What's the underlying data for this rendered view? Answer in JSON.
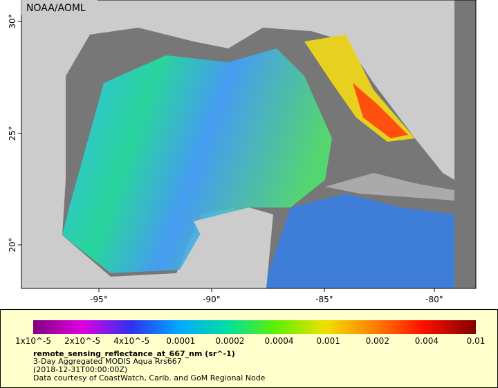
{
  "map": {
    "credit": "NOAA/AOML",
    "x_ticks": [
      "-95°",
      "-90°",
      "-85°",
      "-80°"
    ],
    "y_ticks": [
      "30°",
      "25°",
      "20°"
    ]
  },
  "colorbar": {
    "ticks": [
      "1x10^-5",
      "2x10^-5",
      "4x10^-5",
      "0.0001",
      "0.0002",
      "0.0004",
      "0.001",
      "0.002",
      "0.004",
      "0.01"
    ],
    "title": "remote_sensing_reflectance_at_667_nm (sr^-1)",
    "lines": [
      "3-Day Aggregated MODIS Aqua Rrs667",
      "(2018-12-31T00:00:00Z)",
      "Data courtesy of CoastWatch, Carib. and GoM Regional Node"
    ]
  }
}
